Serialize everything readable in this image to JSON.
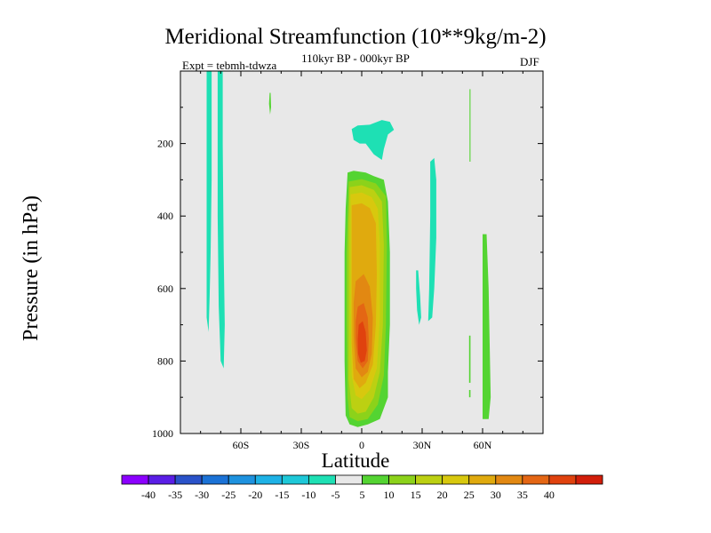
{
  "chart_data": {
    "type": "contour",
    "title": "Meridional Streamfunction (10**9kg/m-2)",
    "subtitle": "110kyr BP - 000kyr BP",
    "experiment": "Expt = tebmh-tdwza",
    "season": "DJF",
    "xlabel": "Latitude",
    "ylabel": "Pressure (in hPa)",
    "xlim": [
      -90,
      90
    ],
    "ylim": [
      0,
      1000
    ],
    "y_reversed": true,
    "x_ticks": [
      {
        "value": -60,
        "label": "60S"
      },
      {
        "value": -30,
        "label": "30S"
      },
      {
        "value": 0,
        "label": "0"
      },
      {
        "value": 30,
        "label": "30N"
      },
      {
        "value": 60,
        "label": "60N"
      }
    ],
    "y_ticks": [
      {
        "value": 200,
        "label": "200"
      },
      {
        "value": 400,
        "label": "400"
      },
      {
        "value": 600,
        "label": "600"
      },
      {
        "value": 800,
        "label": "800"
      },
      {
        "value": 1000,
        "label": "1000"
      }
    ],
    "colorbar": {
      "colors": [
        "#8b00ff",
        "#5a1ee6",
        "#2a52c9",
        "#1b72d6",
        "#1e92df",
        "#1eb2e6",
        "#1ec8d8",
        "#1ee0b4",
        "#e8e8e8",
        "#54d432",
        "#8cd21a",
        "#bcd012",
        "#d8c80e",
        "#e0aa0e",
        "#e28812",
        "#e46614",
        "#e0420e",
        "#d21e0a"
      ],
      "levels": [
        "-40",
        "-35",
        "-30",
        "-25",
        "-20",
        "-15",
        "-10",
        "-5",
        "5",
        "10",
        "15",
        "20",
        "25",
        "30",
        "35",
        "40"
      ]
    },
    "regions": [
      {
        "value": -7.5,
        "color": "#1ee0b4",
        "points": [
          [
            -77,
            0
          ],
          [
            -74.5,
            0
          ],
          [
            -74.5,
            300
          ],
          [
            -75,
            500
          ],
          [
            -75.5,
            620
          ],
          [
            -76,
            720
          ],
          [
            -77,
            680
          ],
          [
            -77,
            400
          ]
        ]
      },
      {
        "value": -7.5,
        "color": "#1ee0b4",
        "points": [
          [
            -71.5,
            0
          ],
          [
            -69,
            0
          ],
          [
            -69,
            200
          ],
          [
            -68.5,
            500
          ],
          [
            -68,
            700
          ],
          [
            -68.5,
            820
          ],
          [
            -70,
            800
          ],
          [
            -71,
            650
          ],
          [
            -71.5,
            400
          ]
        ]
      },
      {
        "value": 7.5,
        "color": "#54d432",
        "points": [
          [
            -45.7,
            60
          ],
          [
            -45.2,
            60
          ],
          [
            -45,
            100
          ],
          [
            -45.5,
            120
          ],
          [
            -46,
            90
          ]
        ]
      },
      {
        "value": -7.5,
        "color": "#1ee0b4",
        "points": [
          [
            -5,
            160
          ],
          [
            -2,
            150
          ],
          [
            4,
            148
          ],
          [
            10,
            135
          ],
          [
            14,
            140
          ],
          [
            16,
            162
          ],
          [
            13,
            175
          ],
          [
            11,
            215
          ],
          [
            10,
            245
          ],
          [
            6,
            230
          ],
          [
            2,
            200
          ],
          [
            -1,
            200
          ],
          [
            -4,
            190
          ]
        ]
      },
      {
        "value": 7.5,
        "color": "#54d432",
        "points": [
          [
            -7,
            280
          ],
          [
            -4,
            275
          ],
          [
            2,
            280
          ],
          [
            6,
            290
          ],
          [
            11,
            300
          ],
          [
            13,
            360
          ],
          [
            14,
            500
          ],
          [
            14,
            700
          ],
          [
            13,
            830
          ],
          [
            13,
            900
          ],
          [
            9,
            960
          ],
          [
            3,
            975
          ],
          [
            -2,
            982
          ],
          [
            -6,
            975
          ],
          [
            -8,
            950
          ],
          [
            -8.5,
            800
          ],
          [
            -8.5,
            500
          ],
          [
            -8,
            380
          ]
        ]
      },
      {
        "value": 12.5,
        "color": "#8cd21a",
        "points": [
          [
            -6.5,
            305
          ],
          [
            0,
            298
          ],
          [
            7,
            310
          ],
          [
            12,
            345
          ],
          [
            12.5,
            480
          ],
          [
            12,
            700
          ],
          [
            11,
            840
          ],
          [
            8,
            920
          ],
          [
            3,
            960
          ],
          [
            -2,
            966
          ],
          [
            -6,
            955
          ],
          [
            -7,
            900
          ],
          [
            -7.5,
            700
          ],
          [
            -7.5,
            500
          ],
          [
            -7,
            400
          ]
        ]
      },
      {
        "value": 17.5,
        "color": "#bcd012",
        "points": [
          [
            -6,
            320
          ],
          [
            0,
            315
          ],
          [
            6,
            328
          ],
          [
            10,
            360
          ],
          [
            11,
            480
          ],
          [
            10.5,
            700
          ],
          [
            9,
            830
          ],
          [
            6,
            900
          ],
          [
            2,
            940
          ],
          [
            -2,
            945
          ],
          [
            -5,
            930
          ],
          [
            -6.5,
            850
          ],
          [
            -6.5,
            600
          ],
          [
            -6.5,
            420
          ]
        ]
      },
      {
        "value": 22.5,
        "color": "#d8c80e",
        "points": [
          [
            -5.5,
            340
          ],
          [
            0,
            335
          ],
          [
            5,
            348
          ],
          [
            8,
            380
          ],
          [
            9,
            480
          ],
          [
            9,
            680
          ],
          [
            7.5,
            820
          ],
          [
            4,
            880
          ],
          [
            0,
            905
          ],
          [
            -3,
            895
          ],
          [
            -5,
            840
          ],
          [
            -5.5,
            650
          ],
          [
            -5.5,
            450
          ]
        ]
      },
      {
        "value": 27.5,
        "color": "#e0aa0e",
        "points": [
          [
            -5,
            370
          ],
          [
            0,
            365
          ],
          [
            4,
            378
          ],
          [
            7,
            420
          ],
          [
            7.5,
            560
          ],
          [
            7,
            700
          ],
          [
            5.5,
            810
          ],
          [
            2,
            860
          ],
          [
            -1,
            875
          ],
          [
            -4,
            850
          ],
          [
            -5,
            750
          ],
          [
            -5,
            560
          ]
        ]
      },
      {
        "value": 32.5,
        "color": "#e28812",
        "points": [
          [
            -3,
            580
          ],
          [
            1,
            560
          ],
          [
            4,
            595
          ],
          [
            5.5,
            680
          ],
          [
            5,
            780
          ],
          [
            3,
            830
          ],
          [
            0,
            845
          ],
          [
            -3,
            820
          ],
          [
            -4,
            730
          ],
          [
            -4,
            640
          ]
        ]
      },
      {
        "value": 37.5,
        "color": "#e46614",
        "points": [
          [
            -2,
            650
          ],
          [
            1,
            640
          ],
          [
            3,
            680
          ],
          [
            3.5,
            740
          ],
          [
            3,
            800
          ],
          [
            0.5,
            820
          ],
          [
            -2,
            800
          ],
          [
            -3,
            740
          ],
          [
            -3,
            690
          ]
        ]
      },
      {
        "value": 42.5,
        "color": "#e0420e",
        "points": [
          [
            -1.5,
            700
          ],
          [
            0.5,
            690
          ],
          [
            2,
            720
          ],
          [
            2.5,
            770
          ],
          [
            1.5,
            800
          ],
          [
            -0.5,
            805
          ],
          [
            -1.8,
            780
          ],
          [
            -2,
            740
          ]
        ]
      },
      {
        "value": -7.5,
        "color": "#1ee0b4",
        "points": [
          [
            34,
            250
          ],
          [
            36,
            240
          ],
          [
            37,
            300
          ],
          [
            37,
            460
          ],
          [
            36,
            600
          ],
          [
            35,
            680
          ],
          [
            33,
            690
          ],
          [
            33.5,
            600
          ],
          [
            34,
            400
          ]
        ]
      },
      {
        "value": -7.5,
        "color": "#1ee0b4",
        "points": [
          [
            27,
            550
          ],
          [
            28,
            550
          ],
          [
            29,
            620
          ],
          [
            29.5,
            680
          ],
          [
            28.5,
            700
          ],
          [
            27.5,
            660
          ],
          [
            27,
            600
          ]
        ]
      },
      {
        "value": 7.5,
        "color": "#54d432",
        "points": [
          [
            53.5,
            50
          ],
          [
            54,
            50
          ],
          [
            54,
            250
          ],
          [
            53.5,
            250
          ]
        ]
      },
      {
        "value": 7.5,
        "color": "#54d432",
        "points": [
          [
            53.3,
            730
          ],
          [
            54,
            730
          ],
          [
            54,
            860
          ],
          [
            53.3,
            860
          ]
        ]
      },
      {
        "value": 7.5,
        "color": "#54d432",
        "points": [
          [
            53.3,
            880
          ],
          [
            54,
            880
          ],
          [
            54,
            900
          ],
          [
            53.3,
            900
          ]
        ]
      },
      {
        "value": 7.5,
        "color": "#54d432",
        "points": [
          [
            60,
            450
          ],
          [
            62,
            450
          ],
          [
            63,
            600
          ],
          [
            64,
            900
          ],
          [
            63,
            960
          ],
          [
            60,
            960
          ]
        ]
      }
    ]
  }
}
